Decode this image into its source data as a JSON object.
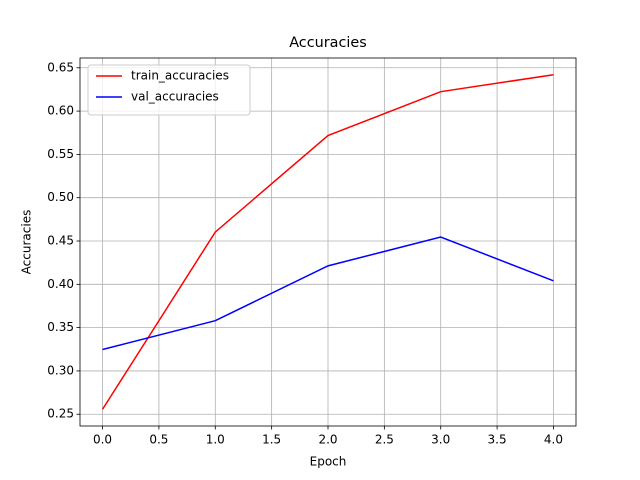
{
  "chart_data": {
    "type": "line",
    "title": "Accuracies",
    "x_label": "Epoch",
    "y_label": "Accuracies",
    "x": [
      0,
      1,
      2,
      3,
      4
    ],
    "series": [
      {
        "name": "train_accuracies",
        "color": "#ff0000",
        "values": [
          0.2557,
          0.4603,
          0.5718,
          0.6224,
          0.642
        ]
      },
      {
        "name": "val_accuracies",
        "color": "#0000ff",
        "values": [
          0.3247,
          0.358,
          0.4213,
          0.4546,
          0.404
        ]
      }
    ],
    "xlim": [
      -0.2,
      4.2
    ],
    "xticks": [
      {
        "value": 0,
        "label": "0.0"
      },
      0.5,
      {
        "value": 1,
        "label": "1.0"
      },
      1.5,
      {
        "value": 2,
        "label": "2.0"
      },
      2.5,
      {
        "value": 3,
        "label": "3.0"
      },
      3.5,
      {
        "value": 4,
        "label": "4.0"
      }
    ],
    "ylim": [
      0.2364,
      0.6613
    ],
    "yticks": [
      0.25,
      {
        "value": 0.3,
        "label": "0.30"
      },
      0.35,
      {
        "value": 0.4,
        "label": "0.40"
      },
      0.45,
      {
        "value": 0.5,
        "label": "0.50"
      },
      0.55,
      {
        "value": 0.6,
        "label": "0.60"
      },
      0.65
    ],
    "grid": true,
    "legend": "upper-left"
  }
}
